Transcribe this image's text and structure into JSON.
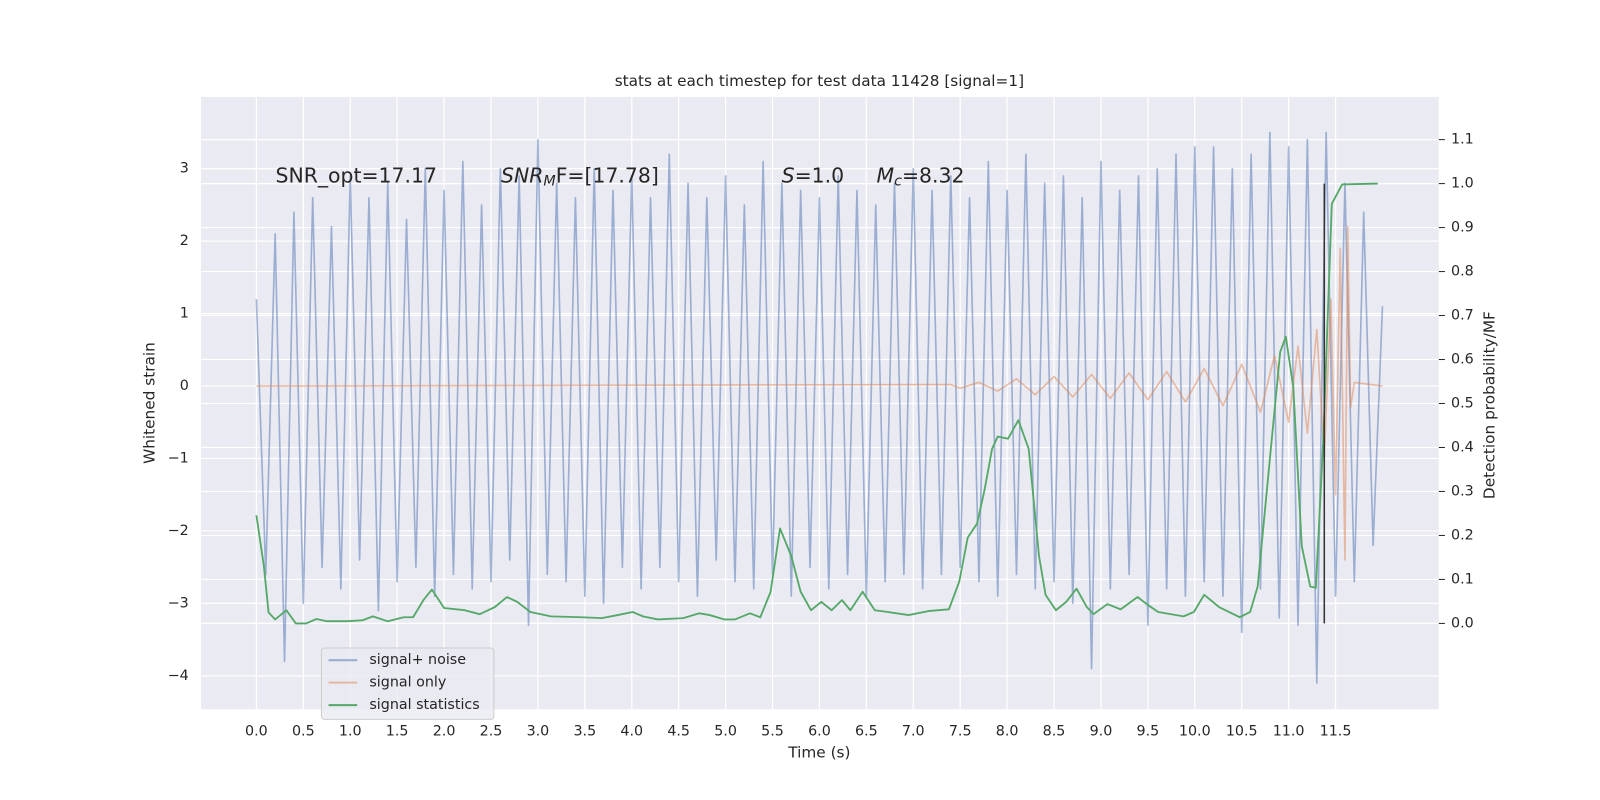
{
  "chart_data": {
    "type": "line",
    "title": "stats at each timestep for test data 11428 [signal=1]",
    "x_label": "Time (s)",
    "y_label": "Whitened strain",
    "y2_label": "Detection probability/MF",
    "annotations": [
      "SNR_opt=17.17",
      {
        "base": "SNR",
        "sub": "M",
        "tail": "F=[17.78]"
      },
      {
        "base": "S",
        "tail": "=1.0"
      },
      {
        "base": "M",
        "sub": "c",
        "tail": "=8.32"
      }
    ],
    "xlim": [
      -0.59,
      12.6
    ],
    "ylim": [
      -4.46,
      3.99
    ],
    "y2lim": [
      -0.195,
      1.197
    ],
    "xticks": [
      {
        "value": 0,
        "label": "0.0"
      },
      0.5,
      {
        "value": 1,
        "label": "1.0"
      },
      1.5,
      {
        "value": 2,
        "label": "2.0"
      },
      2.5,
      {
        "value": 3,
        "label": "3.0"
      },
      3.5,
      {
        "value": 4,
        "label": "4.0"
      },
      4.5,
      {
        "value": 5,
        "label": "5.0"
      },
      5.5,
      {
        "value": 6,
        "label": "6.0"
      },
      6.5,
      {
        "value": 7,
        "label": "7.0"
      },
      7.5,
      {
        "value": 8,
        "label": "8.0"
      },
      8.5,
      {
        "value": 9,
        "label": "9.0"
      },
      9.5,
      {
        "value": 10,
        "label": "10.0"
      },
      10.5,
      {
        "value": 11,
        "label": "11.0"
      },
      11.5
    ],
    "yticks": [
      {
        "value": -4,
        "label": "−4"
      },
      {
        "value": -3,
        "label": "−3"
      },
      {
        "value": -2,
        "label": "−2"
      },
      {
        "value": -1,
        "label": "−1"
      },
      0,
      1,
      2,
      3
    ],
    "y2ticks": [
      {
        "value": 0,
        "label": "0.0"
      },
      0.1,
      0.2,
      0.3,
      0.4,
      0.5,
      0.6,
      0.7,
      0.8,
      0.9,
      {
        "value": 1,
        "label": "1.0"
      },
      1.1
    ],
    "grid": true,
    "background": "#eaeaf2",
    "legend": "lower left",
    "series": [
      {
        "name": "signal+ noise",
        "color": "#4c72b0",
        "opacity": 0.5,
        "x": [
          0.0,
          0.1,
          0.2,
          0.3,
          0.4,
          0.5,
          0.6,
          0.7,
          0.8,
          0.9,
          1.0,
          1.1,
          1.2,
          1.3,
          1.4,
          1.5,
          1.6,
          1.7,
          1.8,
          1.9,
          2.0,
          2.1,
          2.2,
          2.3,
          2.4,
          2.5,
          2.6,
          2.7,
          2.8,
          2.9,
          3.0,
          3.1,
          3.2,
          3.3,
          3.4,
          3.5,
          3.6,
          3.7,
          3.8,
          3.9,
          4.0,
          4.1,
          4.2,
          4.3,
          4.4,
          4.5,
          4.6,
          4.7,
          4.8,
          4.9,
          5.0,
          5.1,
          5.2,
          5.3,
          5.4,
          5.5,
          5.6,
          5.7,
          5.8,
          5.9,
          6.0,
          6.1,
          6.2,
          6.3,
          6.4,
          6.5,
          6.6,
          6.7,
          6.8,
          6.9,
          7.0,
          7.1,
          7.2,
          7.3,
          7.4,
          7.5,
          7.6,
          7.7,
          7.8,
          7.9,
          8.0,
          8.1,
          8.2,
          8.3,
          8.4,
          8.5,
          8.6,
          8.7,
          8.8,
          8.9,
          9.0,
          9.1,
          9.2,
          9.3,
          9.4,
          9.5,
          9.6,
          9.7,
          9.8,
          9.9,
          10.0,
          10.1,
          10.2,
          10.3,
          10.4,
          10.5,
          10.6,
          10.7,
          10.8,
          10.9,
          11.0,
          11.1,
          11.2,
          11.3,
          11.4,
          11.5,
          11.6,
          11.7,
          11.8,
          11.9,
          12.0
        ],
        "values": [
          1.2,
          -2.6,
          2.1,
          -3.8,
          2.4,
          -3.0,
          2.6,
          -2.5,
          2.2,
          -2.8,
          2.9,
          -2.4,
          2.6,
          -3.1,
          2.8,
          -2.7,
          2.3,
          -2.5,
          3.0,
          -2.9,
          2.7,
          -2.6,
          3.1,
          -2.8,
          2.5,
          -2.7,
          3.0,
          -2.4,
          2.9,
          -3.3,
          3.4,
          -2.6,
          2.8,
          -2.7,
          2.6,
          -2.9,
          3.0,
          -3.0,
          2.7,
          -2.5,
          2.9,
          -2.8,
          2.6,
          -2.5,
          3.2,
          -2.7,
          2.8,
          -2.9,
          2.6,
          -2.4,
          2.9,
          -2.7,
          2.5,
          -2.8,
          3.1,
          -2.6,
          2.8,
          -2.9,
          2.7,
          -2.5,
          2.6,
          -2.8,
          2.9,
          -2.6,
          2.7,
          -2.9,
          2.5,
          -2.7,
          2.8,
          -2.6,
          3.0,
          -2.8,
          2.7,
          -2.6,
          2.9,
          -2.5,
          2.6,
          -2.7,
          3.1,
          -2.9,
          2.7,
          -2.6,
          3.2,
          -2.8,
          2.8,
          -2.7,
          2.9,
          -3.0,
          2.6,
          -3.9,
          3.1,
          -2.8,
          2.7,
          -2.6,
          2.9,
          -3.3,
          3.0,
          -2.8,
          3.2,
          -2.9,
          3.3,
          -2.7,
          3.3,
          -2.9,
          3.0,
          -3.4,
          3.2,
          -2.8,
          3.5,
          -3.2,
          3.3,
          -3.3,
          3.4,
          -4.1,
          3.5,
          -2.9,
          2.8,
          -2.7,
          2.4,
          -2.2,
          1.1
        ]
      },
      {
        "name": "signal only",
        "color": "#dd8452",
        "opacity": 0.5,
        "x": [
          0.0,
          7.4,
          7.5,
          7.7,
          7.9,
          8.1,
          8.3,
          8.5,
          8.7,
          8.9,
          9.1,
          9.3,
          9.5,
          9.7,
          9.9,
          10.1,
          10.3,
          10.5,
          10.7,
          10.85,
          11.0,
          11.1,
          11.2,
          11.3,
          11.38,
          11.45,
          11.5,
          11.55,
          11.6,
          11.63,
          11.66,
          11.7,
          12.0
        ],
        "values": [
          0,
          0.02,
          -0.03,
          0.05,
          -0.07,
          0.1,
          -0.12,
          0.13,
          -0.15,
          0.16,
          -0.17,
          0.18,
          -0.19,
          0.2,
          -0.22,
          0.24,
          -0.27,
          0.3,
          -0.36,
          0.42,
          -0.5,
          0.55,
          -0.65,
          0.78,
          -1.0,
          1.2,
          -1.5,
          1.9,
          -2.4,
          2.2,
          -0.3,
          0.05,
          0
        ]
      },
      {
        "name": "signal statistics",
        "color": "#55a868",
        "opacity": 1,
        "axis": "y2",
        "x": [
          0,
          0.08,
          0.13,
          0.2,
          0.32,
          0.42,
          0.53,
          0.64,
          0.75,
          0.97,
          1.13,
          1.24,
          1.4,
          1.57,
          1.67,
          1.78,
          1.87,
          2.0,
          2.22,
          2.38,
          2.54,
          2.67,
          2.78,
          2.92,
          3.14,
          3.47,
          3.68,
          3.85,
          4.01,
          4.12,
          4.28,
          4.55,
          4.72,
          4.83,
          4.99,
          5.1,
          5.26,
          5.37,
          5.48,
          5.58,
          5.7,
          5.8,
          5.91,
          6.02,
          6.13,
          6.24,
          6.33,
          6.46,
          6.59,
          6.73,
          6.95,
          7.16,
          7.38,
          7.49,
          7.58,
          7.68,
          7.76,
          7.84,
          7.9,
          8.01,
          8.12,
          8.23,
          8.34,
          8.41,
          8.52,
          8.63,
          8.74,
          8.85,
          8.92,
          9.07,
          9.21,
          9.39,
          9.5,
          9.61,
          9.88,
          9.99,
          10.1,
          10.26,
          10.48,
          10.59,
          10.67,
          10.8,
          10.91,
          10.97,
          11.05,
          11.14,
          11.23,
          11.29,
          11.37,
          11.46,
          11.57,
          11.95
        ],
        "values": [
          0.246,
          0.13,
          0.025,
          0.009,
          0.03,
          0.0,
          0.0,
          0.01,
          0.005,
          0.005,
          0.007,
          0.016,
          0.005,
          0.014,
          0.014,
          0.053,
          0.077,
          0.035,
          0.03,
          0.021,
          0.037,
          0.06,
          0.049,
          0.026,
          0.016,
          0.014,
          0.012,
          0.019,
          0.026,
          0.016,
          0.009,
          0.012,
          0.023,
          0.019,
          0.009,
          0.009,
          0.023,
          0.014,
          0.072,
          0.216,
          0.153,
          0.072,
          0.03,
          0.049,
          0.03,
          0.053,
          0.03,
          0.072,
          0.03,
          0.026,
          0.019,
          0.028,
          0.032,
          0.095,
          0.195,
          0.227,
          0.304,
          0.397,
          0.425,
          0.42,
          0.462,
          0.397,
          0.153,
          0.065,
          0.03,
          0.049,
          0.079,
          0.037,
          0.021,
          0.044,
          0.032,
          0.06,
          0.042,
          0.026,
          0.016,
          0.026,
          0.065,
          0.037,
          0.014,
          0.026,
          0.084,
          0.374,
          0.617,
          0.652,
          0.536,
          0.176,
          0.084,
          0.081,
          0.42,
          0.954,
          0.998,
          1.0
        ]
      }
    ],
    "vline": {
      "x": 11.38,
      "y": [
        0,
        1
      ],
      "color": "#333333",
      "axis": "y2"
    }
  }
}
